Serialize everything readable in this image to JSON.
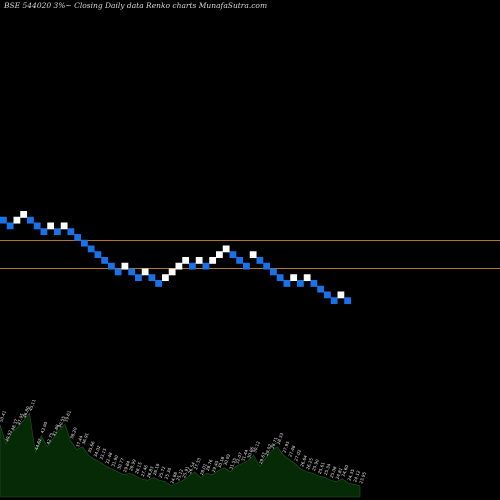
{
  "chart_data": {
    "type": "renko",
    "title": "BSE 544020  3%~  Closing Daily data  Renko  charts MunafaSutra.com",
    "colors": {
      "background": "#000000",
      "up_brick": "#ffffff",
      "down_brick": "#1b72e8",
      "hlines": "#b4781e",
      "volume_fill": "#062a06"
    },
    "hlines": [
      0.48,
      0.535
    ],
    "bricks": [
      {
        "d": "down",
        "lvl": 1
      },
      {
        "d": "down",
        "lvl": 2
      },
      {
        "d": "up",
        "lvl": 1
      },
      {
        "d": "up",
        "lvl": 0
      },
      {
        "d": "down",
        "lvl": 1
      },
      {
        "d": "down",
        "lvl": 2
      },
      {
        "d": "down",
        "lvl": 3
      },
      {
        "d": "up",
        "lvl": 2
      },
      {
        "d": "down",
        "lvl": 3
      },
      {
        "d": "up",
        "lvl": 2
      },
      {
        "d": "down",
        "lvl": 3
      },
      {
        "d": "down",
        "lvl": 4
      },
      {
        "d": "down",
        "lvl": 5
      },
      {
        "d": "down",
        "lvl": 6
      },
      {
        "d": "down",
        "lvl": 7
      },
      {
        "d": "down",
        "lvl": 8
      },
      {
        "d": "down",
        "lvl": 9
      },
      {
        "d": "down",
        "lvl": 10
      },
      {
        "d": "up",
        "lvl": 9
      },
      {
        "d": "down",
        "lvl": 10
      },
      {
        "d": "down",
        "lvl": 11
      },
      {
        "d": "up",
        "lvl": 10
      },
      {
        "d": "down",
        "lvl": 11
      },
      {
        "d": "down",
        "lvl": 12
      },
      {
        "d": "up",
        "lvl": 11
      },
      {
        "d": "up",
        "lvl": 10
      },
      {
        "d": "up",
        "lvl": 9
      },
      {
        "d": "up",
        "lvl": 8
      },
      {
        "d": "down",
        "lvl": 9
      },
      {
        "d": "up",
        "lvl": 8
      },
      {
        "d": "down",
        "lvl": 9
      },
      {
        "d": "up",
        "lvl": 8
      },
      {
        "d": "up",
        "lvl": 7
      },
      {
        "d": "up",
        "lvl": 6
      },
      {
        "d": "down",
        "lvl": 7
      },
      {
        "d": "down",
        "lvl": 8
      },
      {
        "d": "down",
        "lvl": 9
      },
      {
        "d": "up",
        "lvl": 7
      },
      {
        "d": "down",
        "lvl": 8
      },
      {
        "d": "down",
        "lvl": 9
      },
      {
        "d": "down",
        "lvl": 10
      },
      {
        "d": "down",
        "lvl": 11
      },
      {
        "d": "down",
        "lvl": 12
      },
      {
        "d": "up",
        "lvl": 11
      },
      {
        "d": "down",
        "lvl": 12
      },
      {
        "d": "up",
        "lvl": 11
      },
      {
        "d": "down",
        "lvl": 12
      },
      {
        "d": "down",
        "lvl": 13
      },
      {
        "d": "down",
        "lvl": 14
      },
      {
        "d": "down",
        "lvl": 15
      },
      {
        "d": "up",
        "lvl": 14
      },
      {
        "d": "down",
        "lvl": 15
      }
    ],
    "volume": [
      0.52,
      0.38,
      0.46,
      0.5,
      0.55,
      0.6,
      0.32,
      0.44,
      0.36,
      0.42,
      0.48,
      0.52,
      0.4,
      0.34,
      0.36,
      0.3,
      0.27,
      0.25,
      0.22,
      0.2,
      0.18,
      0.16,
      0.17,
      0.15,
      0.13,
      0.12,
      0.14,
      0.12,
      0.11,
      0.08,
      0.1,
      0.12,
      0.15,
      0.18,
      0.14,
      0.17,
      0.16,
      0.19,
      0.21,
      0.18,
      0.22,
      0.24,
      0.26,
      0.3,
      0.22,
      0.28,
      0.33,
      0.36,
      0.3,
      0.27,
      0.24,
      0.2,
      0.18,
      0.17,
      0.15,
      0.14,
      0.12,
      0.11,
      0.13,
      0.1,
      0.09,
      0.08
    ],
    "volume_labels": [
      "50.41",
      "49.92",
      "48.37",
      "47.95",
      "46.80",
      "45.11",
      "44.62",
      "43.90",
      "42.75",
      "41.88",
      "40.55",
      "39.61",
      "38.20",
      "37.44",
      "36.91",
      "35.66",
      "34.02",
      "33.15",
      "32.48",
      "31.90",
      "30.77",
      "29.84",
      "28.99",
      "28.15",
      "27.46",
      "26.83",
      "26.19",
      "25.72",
      "25.30",
      "24.88",
      "25.12",
      "25.91",
      "26.54",
      "27.33",
      "28.01",
      "28.76",
      "29.40",
      "30.18",
      "30.92",
      "31.55",
      "32.07",
      "31.44",
      "30.86",
      "30.12",
      "29.67",
      "29.02",
      "28.71",
      "28.33",
      "27.95",
      "27.48",
      "27.02",
      "26.64",
      "26.25",
      "25.90",
      "25.61",
      "25.34",
      "25.08",
      "24.81",
      "24.60",
      "24.35",
      "24.12",
      "23.95"
    ]
  }
}
